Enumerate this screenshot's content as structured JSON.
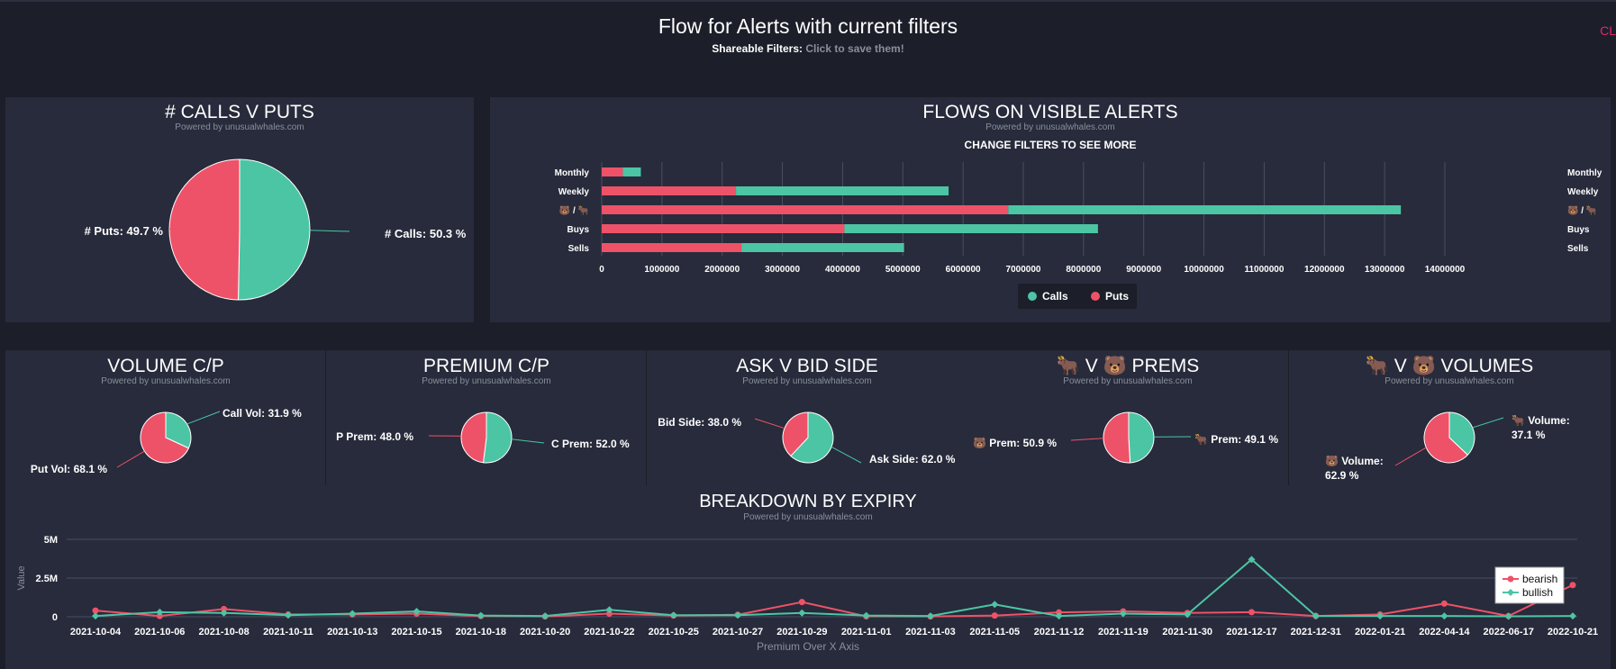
{
  "header": {
    "title": "Flow for Alerts with current filters",
    "share_label": "Shareable Filters:",
    "share_link": "Click to save them!",
    "corner_text": "CL"
  },
  "powered_by": "Powered by unusualwhales.com",
  "colors": {
    "green": "#4cc5a4",
    "red": "#ee5268",
    "background": "#1c1e29",
    "panel": "#272b3b"
  },
  "chart_data": [
    {
      "type": "pie",
      "title": "# CALLS V PUTS",
      "slices": [
        {
          "label": "# Calls: 50.3 %",
          "value": 50.3,
          "color": "#4cc5a4"
        },
        {
          "label": "# Puts: 49.7 %",
          "value": 49.7,
          "color": "#ee5268"
        }
      ]
    },
    {
      "type": "bar",
      "orientation": "horizontal",
      "stacked": true,
      "title": "FLOWS ON VISIBLE ALERTS",
      "subtitle": "CHANGE FILTERS TO SEE MORE",
      "categories": [
        "Monthly",
        "Weekly",
        "🐻 / 🐂",
        "Buys",
        "Sells"
      ],
      "series": [
        {
          "name": "Puts",
          "color": "#ee5268",
          "values": [
            350000,
            2230000,
            6750000,
            4030000,
            2320000
          ]
        },
        {
          "name": "Calls",
          "color": "#4cc5a4",
          "values": [
            300000,
            3530000,
            6520000,
            4210000,
            2700000
          ]
        }
      ],
      "legend": [
        "Calls",
        "Puts"
      ],
      "legend_position": "bottom",
      "xlim": [
        0,
        14000000
      ],
      "xticks": [
        "0",
        "1000000",
        "2000000",
        "3000000",
        "4000000",
        "5000000",
        "6000000",
        "7000000",
        "8000000",
        "9000000",
        "10000000",
        "11000000",
        "12000000",
        "13000000",
        "14000000"
      ]
    },
    {
      "type": "pie",
      "title": "VOLUME C/P",
      "slices": [
        {
          "label": "Call Vol: 31.9 %",
          "value": 31.9,
          "color": "#4cc5a4"
        },
        {
          "label": "Put Vol: 68.1 %",
          "value": 68.1,
          "color": "#ee5268"
        }
      ]
    },
    {
      "type": "pie",
      "title": "PREMIUM C/P",
      "slices": [
        {
          "label": "C Prem: 52.0 %",
          "value": 52.0,
          "color": "#4cc5a4"
        },
        {
          "label": "P Prem: 48.0 %",
          "value": 48.0,
          "color": "#ee5268"
        }
      ]
    },
    {
      "type": "pie",
      "title": "ASK V BID SIDE",
      "slices": [
        {
          "label": "Ask Side: 62.0 %",
          "value": 62.0,
          "color": "#4cc5a4"
        },
        {
          "label": "Bid Side: 38.0 %",
          "value": 38.0,
          "color": "#ee5268"
        }
      ]
    },
    {
      "type": "pie",
      "title": "🐂 V 🐻 PREMS",
      "slices": [
        {
          "label": "🐂 Prem: 49.1 %",
          "value": 49.1,
          "color": "#4cc5a4"
        },
        {
          "label": "🐻 Prem: 50.9 %",
          "value": 50.9,
          "color": "#ee5268"
        }
      ]
    },
    {
      "type": "pie",
      "title": "🐂 V 🐻 VOLUMES",
      "slices": [
        {
          "label": "🐂 Volume: 37.1 %",
          "value": 37.1,
          "color": "#4cc5a4"
        },
        {
          "label": "🐻 Volume: 62.9 %",
          "value": 62.9,
          "color": "#ee5268"
        }
      ]
    },
    {
      "type": "line",
      "title": "BREAKDOWN BY EXPIRY",
      "xlabel": "Premium Over X Axis",
      "ylabel": "Value",
      "ylim": [
        0,
        5000000
      ],
      "yticks": [
        {
          "value": 0,
          "label": "0"
        },
        {
          "value": 2500000,
          "label": "2.5M"
        },
        {
          "value": 5000000,
          "label": "5M"
        }
      ],
      "grid": true,
      "legend_position": "right",
      "categories": [
        "2021-10-04",
        "2021-10-06",
        "2021-10-08",
        "2021-10-11",
        "2021-10-13",
        "2021-10-15",
        "2021-10-18",
        "2021-10-20",
        "2021-10-22",
        "2021-10-25",
        "2021-10-27",
        "2021-10-29",
        "2021-11-01",
        "2021-11-03",
        "2021-11-05",
        "2021-11-12",
        "2021-11-19",
        "2021-11-30",
        "2021-12-17",
        "2021-12-31",
        "2022-01-21",
        "2022-04-14",
        "2022-06-17",
        "2022-10-21"
      ],
      "series": [
        {
          "name": "bearish",
          "color": "#ee5268",
          "marker": "circle",
          "values": [
            400000,
            50000,
            500000,
            150000,
            150000,
            200000,
            50000,
            20000,
            200000,
            80000,
            130000,
            950000,
            30000,
            20000,
            80000,
            280000,
            350000,
            250000,
            300000,
            50000,
            150000,
            850000,
            50000,
            2050000
          ]
        },
        {
          "name": "bullish",
          "color": "#4cc5a4",
          "marker": "diamond",
          "values": [
            50000,
            300000,
            250000,
            100000,
            200000,
            350000,
            80000,
            50000,
            450000,
            100000,
            100000,
            250000,
            80000,
            50000,
            800000,
            50000,
            200000,
            150000,
            3700000,
            50000,
            50000,
            50000,
            30000,
            50000
          ]
        }
      ]
    }
  ]
}
